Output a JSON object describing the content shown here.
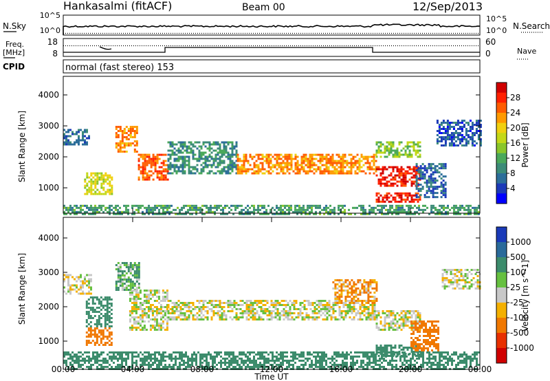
{
  "header": {
    "station": "Hankasalmi (fitACF)",
    "beam": "Beam 00",
    "date": "12/Sep/2013"
  },
  "nsky_panel": {
    "left_label": "N.Sky",
    "left_ticks": [
      "10^5",
      "10^0"
    ],
    "right_ticks": [
      "10^5",
      "10^0"
    ],
    "right_label": "N.Search"
  },
  "freq_panel": {
    "left_label_line1": "Freq.",
    "left_label_line2": "[MHz]",
    "left_ticks": [
      "18",
      "8"
    ],
    "right_ticks": [
      "60",
      "0"
    ],
    "right_label": "Nave"
  },
  "cpid_panel": {
    "label": "CPID",
    "text": "normal (fast stereo) 153"
  },
  "chart_data": [
    {
      "type": "heatmap",
      "name": "power",
      "ylabel": "Slant Range [km]",
      "yticks": [
        "1000",
        "2000",
        "3000",
        "4000"
      ],
      "ylim": [
        180,
        4600
      ],
      "xlim": [
        0,
        24
      ],
      "colorbar_label": "Power [dB]",
      "colorbar_ticks": [
        "4",
        "8",
        "12",
        "16",
        "20",
        "24",
        "28"
      ],
      "colorbar_colors": [
        "#0000ff",
        "#1c3ab8",
        "#2c6e9a",
        "#3c8c78",
        "#4aa85a",
        "#8ac62a",
        "#c4d818",
        "#f0d010",
        "#ff9a00",
        "#ff5c00",
        "#ff2000",
        "#d00000"
      ],
      "echo_bands": [
        {
          "t": [
            0,
            1.5
          ],
          "r": [
            2400,
            2900
          ],
          "p": 6
        },
        {
          "t": [
            1.2,
            2.8
          ],
          "r": [
            800,
            1500
          ],
          "p": 17
        },
        {
          "t": [
            3.0,
            4.3
          ],
          "r": [
            2200,
            3000
          ],
          "p": 22
        },
        {
          "t": [
            4.3,
            6.0
          ],
          "r": [
            1300,
            2100
          ],
          "p": 24
        },
        {
          "t": [
            6.0,
            10.0
          ],
          "r": [
            1500,
            2500
          ],
          "p": 9
        },
        {
          "t": [
            10.0,
            18.0
          ],
          "r": [
            1500,
            2100
          ],
          "p": 22
        },
        {
          "t": [
            18.0,
            20.5
          ],
          "r": [
            1100,
            1700
          ],
          "p": 27
        },
        {
          "t": [
            18.0,
            20.5
          ],
          "r": [
            550,
            850
          ],
          "p": 27
        },
        {
          "t": [
            18.0,
            20.5
          ],
          "r": [
            2000,
            2500
          ],
          "p": 14
        },
        {
          "t": [
            20.3,
            22.0
          ],
          "r": [
            700,
            1800
          ],
          "p": 6
        },
        {
          "t": [
            21.5,
            24.0
          ],
          "r": [
            2400,
            3200
          ],
          "p": 5
        },
        {
          "t": [
            0,
            24.0
          ],
          "r": [
            180,
            450
          ],
          "p": 10
        }
      ]
    },
    {
      "type": "heatmap",
      "name": "velocity",
      "ylabel": "Slant Range [km]",
      "yticks": [
        "1000",
        "2000",
        "3000",
        "4000"
      ],
      "ylim": [
        180,
        4600
      ],
      "xlim": [
        0,
        24
      ],
      "xticks": [
        "00:00",
        "04:00",
        "08:00",
        "12:00",
        "16:00",
        "20:00",
        "00:00"
      ],
      "xlabel": "Time UT",
      "colorbar_label": "Velocity [m s^-1]",
      "colorbar_ticks": [
        "1000",
        "500",
        "100",
        "25",
        "-25",
        "-100",
        "-500",
        "-1000"
      ],
      "colorbar_colors": [
        "#1a3ab8",
        "#2a6a9a",
        "#3c8c6c",
        "#66c040",
        "#c8c8c8",
        "#f4b000",
        "#f07800",
        "#e83000",
        "#d00000"
      ],
      "echo_bands": [
        {
          "t": [
            0,
            1.6
          ],
          "r": [
            2400,
            2950
          ],
          "v": 0
        },
        {
          "t": [
            1.3,
            2.8
          ],
          "r": [
            1400,
            2300
          ],
          "v": 150
        },
        {
          "t": [
            1.3,
            2.8
          ],
          "r": [
            900,
            1400
          ],
          "v": -150
        },
        {
          "t": [
            3.0,
            4.4
          ],
          "r": [
            2500,
            3300
          ],
          "v": 60
        },
        {
          "t": [
            3.8,
            6.0
          ],
          "r": [
            1300,
            2500
          ],
          "v": 0
        },
        {
          "t": [
            6.0,
            18.0
          ],
          "r": [
            1650,
            2200
          ],
          "v": 0
        },
        {
          "t": [
            15.5,
            18.0
          ],
          "r": [
            2100,
            2800
          ],
          "v": -60
        },
        {
          "t": [
            18.0,
            20.5
          ],
          "r": [
            1300,
            1900
          ],
          "v": 0
        },
        {
          "t": [
            18.0,
            20.5
          ],
          "r": [
            550,
            900
          ],
          "v": 150
        },
        {
          "t": [
            20.0,
            21.6
          ],
          "r": [
            700,
            1600
          ],
          "v": -150
        },
        {
          "t": [
            21.8,
            24.0
          ],
          "r": [
            2500,
            3100
          ],
          "v": 0
        },
        {
          "t": [
            0,
            24.0
          ],
          "r": [
            180,
            700
          ],
          "v": 120
        }
      ]
    }
  ]
}
